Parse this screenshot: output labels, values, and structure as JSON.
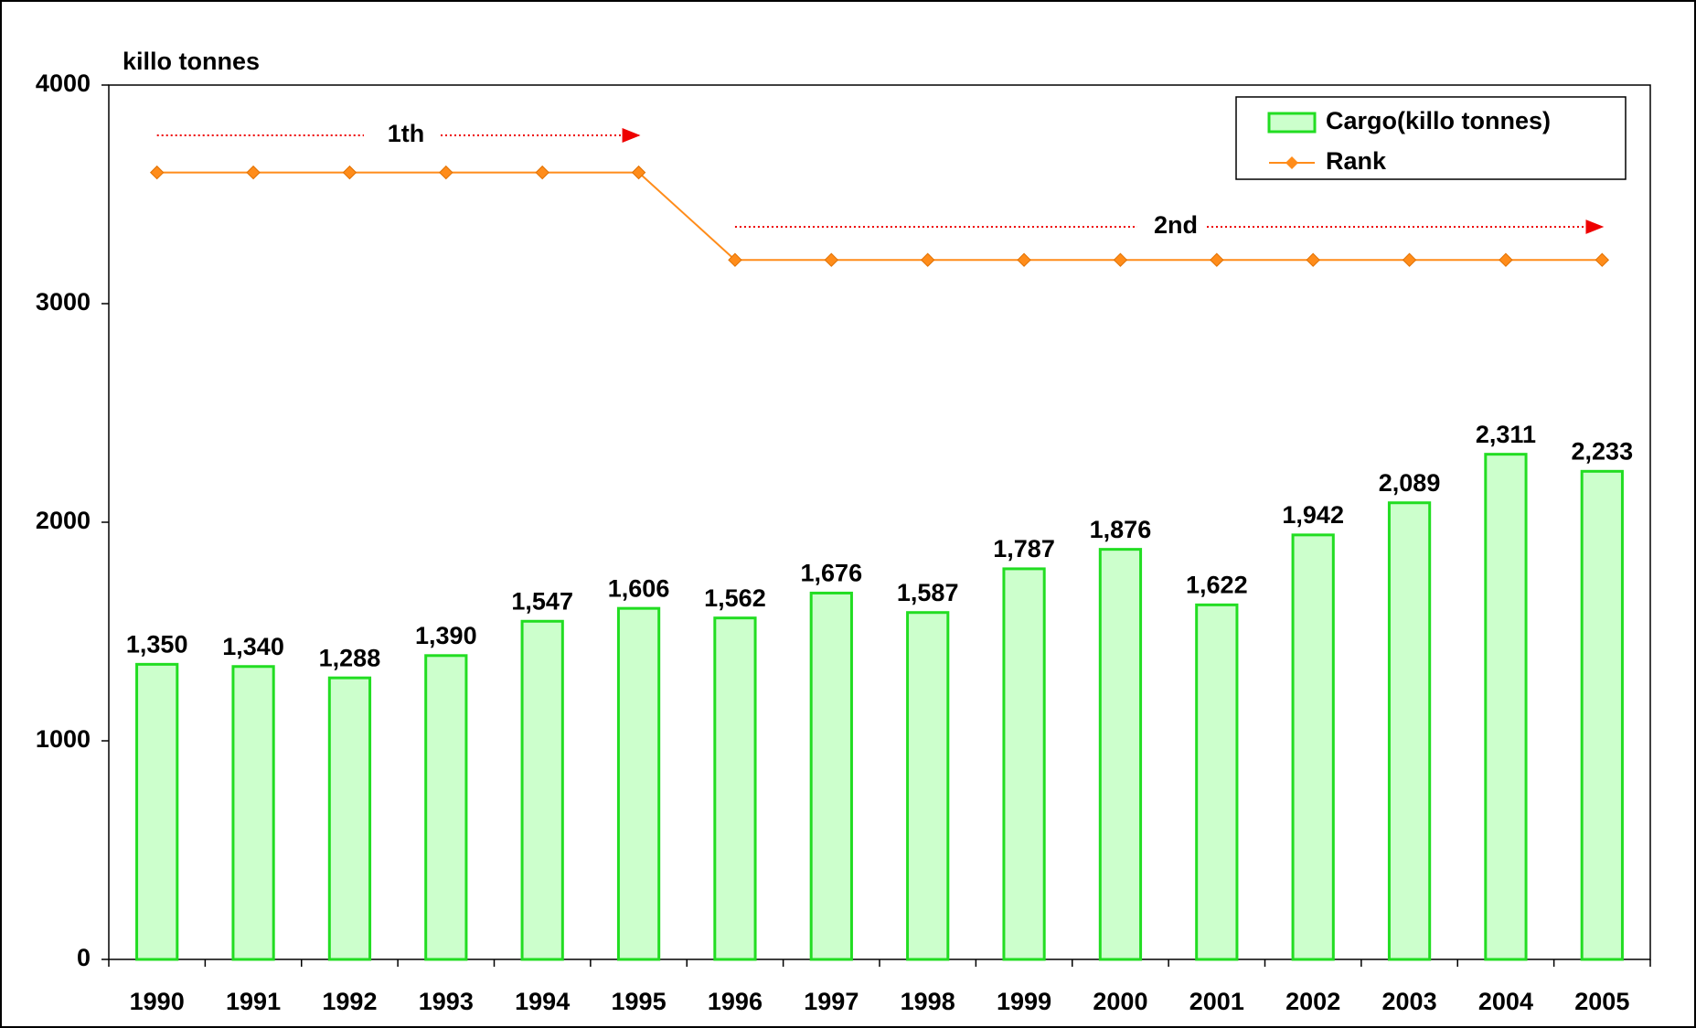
{
  "chart_data": {
    "type": "bar",
    "y_label": "killo tonnes",
    "categories": [
      "1990",
      "1991",
      "1992",
      "1993",
      "1994",
      "1995",
      "1996",
      "1997",
      "1998",
      "1999",
      "2000",
      "2001",
      "2002",
      "2003",
      "2004",
      "2005"
    ],
    "series": [
      {
        "name": "Cargo(killo tonnes)",
        "type": "bar",
        "color": "#ccffcc",
        "edge_color": "#22dd22",
        "values": [
          1350,
          1340,
          1288,
          1390,
          1547,
          1606,
          1562,
          1676,
          1587,
          1787,
          1876,
          1622,
          1942,
          2089,
          2311,
          2233
        ],
        "value_labels": [
          "1,350",
          "1,340",
          "1,288",
          "1,390",
          "1,547",
          "1,606",
          "1,562",
          "1,676",
          "1,587",
          "1,787",
          "1,876",
          "1,622",
          "1,942",
          "2,089",
          "2,311",
          "2,233"
        ]
      },
      {
        "name": "Rank",
        "type": "line",
        "color": "#ff8c1a",
        "values": [
          3600,
          3600,
          3600,
          3600,
          3600,
          3600,
          3200,
          3200,
          3200,
          3200,
          3200,
          3200,
          3200,
          3200,
          3200,
          3200
        ]
      }
    ],
    "annotations": [
      "1th",
      "2nd"
    ],
    "ylim": [
      0,
      4000
    ],
    "yticks": [
      0,
      1000,
      2000,
      3000,
      4000
    ],
    "legend": "upper right"
  }
}
